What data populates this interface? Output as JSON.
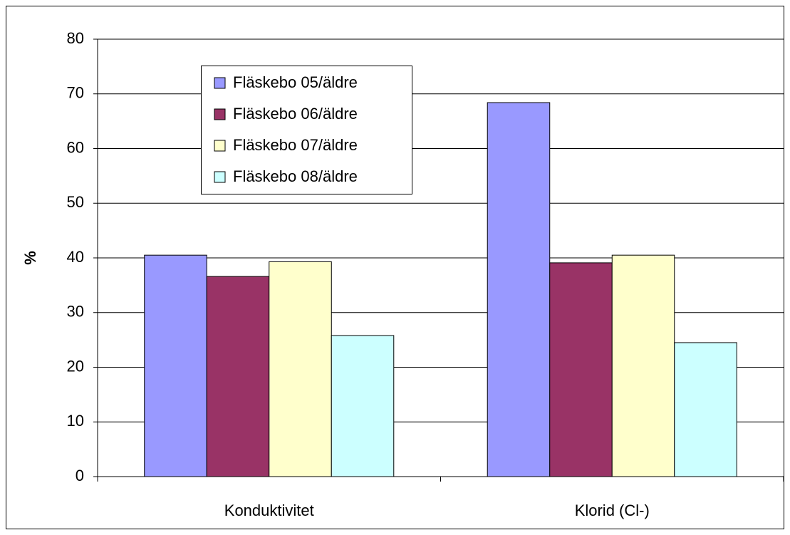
{
  "chart_data": {
    "type": "bar",
    "y_label": "%",
    "categories": [
      "Konduktivitet",
      "Klorid (Cl-)"
    ],
    "series": [
      {
        "name": "Fläskebo 05/äldre",
        "color": "#9999ff",
        "values": [
          40.5,
          68.4
        ]
      },
      {
        "name": "Fläskebo 06/äldre",
        "color": "#993366",
        "values": [
          36.6,
          39.1
        ]
      },
      {
        "name": "Fläskebo 07/äldre",
        "color": "#ffffcc",
        "values": [
          39.3,
          40.5
        ]
      },
      {
        "name": "Fläskebo 08/äldre",
        "color": "#ccffff",
        "values": [
          25.8,
          24.5
        ]
      }
    ],
    "ylim": [
      0,
      80
    ],
    "yticks": [
      0,
      10,
      20,
      30,
      40,
      50,
      60,
      70,
      80
    ],
    "grid": true,
    "legend": "upper left"
  }
}
